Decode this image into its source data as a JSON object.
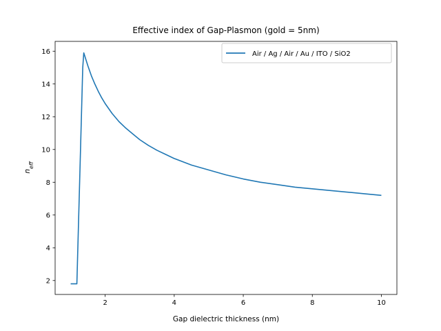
{
  "chart_data": {
    "type": "line",
    "title": "Effective index of Gap-Plasmon (gold = 5nm)",
    "xlabel": "Gap dielectric thickness (nm)",
    "ylabel": {
      "base": "n",
      "sub": "eff"
    },
    "xlim": [
      0.55,
      10.45
    ],
    "ylim": [
      1.15,
      16.6
    ],
    "xticks": [
      2,
      4,
      6,
      8,
      10
    ],
    "yticks": [
      2,
      4,
      6,
      8,
      10,
      12,
      14,
      16
    ],
    "grid": false,
    "legend_position": "upper right",
    "series": [
      {
        "name": "Air / Ag / Air / Au / ITO / SiO2",
        "color": "#1f77b4",
        "x": [
          1.0,
          1.18,
          1.35,
          1.38,
          1.5,
          1.6,
          1.7,
          1.8,
          1.9,
          2.0,
          2.2,
          2.4,
          2.6,
          2.8,
          3.0,
          3.25,
          3.5,
          3.75,
          4.0,
          4.5,
          5.0,
          5.5,
          6.0,
          6.5,
          7.0,
          7.5,
          8.0,
          8.5,
          9.0,
          9.5,
          10.0
        ],
        "y": [
          1.8,
          1.8,
          15.0,
          15.9,
          15.1,
          14.5,
          14.0,
          13.55,
          13.15,
          12.8,
          12.2,
          11.7,
          11.3,
          10.95,
          10.6,
          10.25,
          9.95,
          9.7,
          9.45,
          9.05,
          8.75,
          8.45,
          8.2,
          8.0,
          7.85,
          7.7,
          7.6,
          7.5,
          7.4,
          7.3,
          7.2
        ]
      }
    ]
  }
}
